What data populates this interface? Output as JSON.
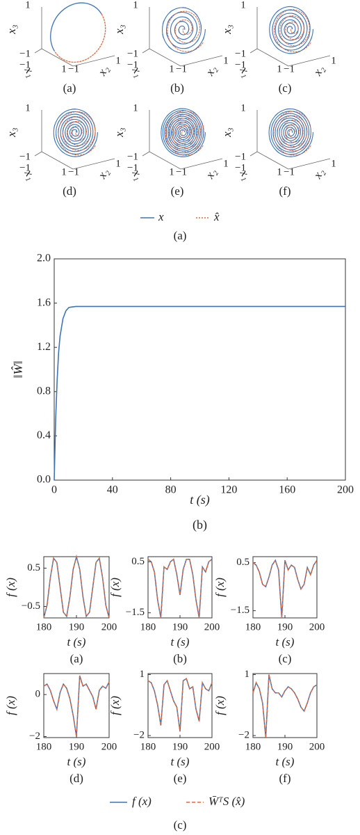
{
  "phase_portraits": {
    "panels": [
      "(a)",
      "(b)",
      "(c)",
      "(d)",
      "(e)",
      "(f)"
    ],
    "tick_pos": "1",
    "tick_neg": "−1",
    "axes": [
      "x₁",
      "x₂",
      "x₃"
    ],
    "series": [
      {
        "name": "x",
        "color": "#3c74b6"
      },
      {
        "name": "x̂",
        "color": "#e2683c"
      }
    ],
    "caption": "(a)"
  },
  "legend_c": {
    "series": [
      {
        "name": "f (x)",
        "color": "#3c74b6"
      },
      {
        "name": "W̄ᵀS (x̂)",
        "color": "#e2683c"
      }
    ],
    "caption": "(c)"
  },
  "chart_data": [
    {
      "type": "line",
      "ylabel": "‖Ŵ‖",
      "xlabel": "t (s)",
      "caption": "(b)",
      "x": [
        0,
        1,
        2,
        3,
        4,
        6,
        8,
        10,
        12,
        15,
        20,
        40,
        80,
        120,
        160,
        200
      ],
      "series": [
        {
          "color": "#3c74b6",
          "values": [
            0,
            0.55,
            0.9,
            1.15,
            1.3,
            1.46,
            1.53,
            1.56,
            1.565,
            1.57,
            1.57,
            1.57,
            1.57,
            1.57,
            1.57,
            1.57
          ]
        }
      ],
      "xlim": [
        0,
        200
      ],
      "ylim": [
        0,
        2
      ],
      "xticks": [
        0,
        40,
        80,
        120,
        160,
        200
      ],
      "yticks": [
        {
          "value": 0,
          "label": "0.0"
        },
        {
          "value": 0.4,
          "label": "0.4"
        },
        {
          "value": 0.8,
          "label": "0.8"
        },
        {
          "value": 1.2,
          "label": "1.2"
        },
        {
          "value": 1.6,
          "label": "1.6"
        },
        {
          "value": 2,
          "label": "2.0"
        }
      ]
    },
    {
      "type": "line",
      "label": "(a)",
      "xlabel": "t (s)",
      "ylabel": "f (x)",
      "x": [
        180,
        181,
        182,
        183,
        184,
        185,
        186,
        187,
        188,
        189,
        190,
        191,
        192,
        193,
        194,
        195,
        196,
        197,
        198,
        199,
        200
      ],
      "series": [
        {
          "color": "#3c74b6",
          "values": [
            -0.8,
            -0.47,
            0.25,
            0.76,
            0.65,
            0,
            -0.65,
            -0.76,
            -0.25,
            0.47,
            0.8,
            0.47,
            -0.25,
            -0.76,
            -0.65,
            0,
            0.65,
            0.76,
            0.25,
            -0.47,
            -0.8
          ]
        },
        {
          "color": "#e2683c",
          "dash": true,
          "values": [
            -0.8,
            -0.47,
            0.25,
            0.76,
            0.65,
            0,
            -0.65,
            -0.76,
            -0.25,
            0.47,
            0.8,
            0.47,
            -0.25,
            -0.76,
            -0.65,
            0,
            0.65,
            0.76,
            0.25,
            -0.47,
            -0.8
          ]
        }
      ],
      "xlim": [
        180,
        200
      ],
      "ylim": [
        -0.8,
        0.8
      ],
      "xticks": [
        180,
        190,
        200
      ],
      "yticks": [
        0.5,
        {
          "value": -0.5,
          "label": "−0.5"
        }
      ]
    },
    {
      "type": "line",
      "label": "(b)",
      "xlabel": "t (s)",
      "ylabel": "f (x)",
      "x": [
        180,
        181,
        182,
        183,
        184,
        185,
        186,
        187,
        188,
        189,
        190,
        191,
        192,
        193,
        194,
        195,
        196,
        197,
        198,
        199,
        200
      ],
      "series": [
        {
          "color": "#3c74b6",
          "values": [
            0.6,
            0.5,
            0.1,
            -1.0,
            -1.7,
            0.3,
            0.2,
            0.5,
            0.6,
            0,
            -0.8,
            0.2,
            0.6,
            0.6,
            0,
            -1.0,
            -1.7,
            0.3,
            0.1,
            0.5,
            0.6
          ]
        },
        {
          "color": "#e2683c",
          "dash": true,
          "values": [
            0.6,
            0.5,
            0.1,
            -1.0,
            -1.7,
            0.3,
            0.2,
            0.5,
            0.6,
            0,
            -0.8,
            0.2,
            0.6,
            0.6,
            0,
            -1.0,
            -1.7,
            0.3,
            0.1,
            0.5,
            0.6
          ]
        }
      ],
      "xlim": [
        180,
        200
      ],
      "ylim": [
        -1.7,
        0.7
      ],
      "xticks": [
        180,
        190,
        200
      ],
      "yticks": [
        0.5,
        {
          "value": -1.5,
          "label": "−1.5"
        }
      ]
    },
    {
      "type": "line",
      "label": "(c)",
      "xlabel": "t (s)",
      "ylabel": "f (x)",
      "x": [
        180,
        181,
        182,
        183,
        184,
        185,
        186,
        187,
        188,
        189,
        190,
        191,
        192,
        193,
        194,
        195,
        196,
        197,
        198,
        199,
        200
      ],
      "series": [
        {
          "color": "#3c74b6",
          "values": [
            0.5,
            0.4,
            0.1,
            -0.4,
            -0.5,
            -0.1,
            0.4,
            0.6,
            0.2,
            -1.8,
            0.6,
            0.2,
            0.4,
            0.3,
            -0.2,
            -0.6,
            -0.4,
            0.3,
            0,
            0.4,
            0.6
          ]
        },
        {
          "color": "#e2683c",
          "dash": true,
          "values": [
            0.5,
            0.4,
            0.1,
            -0.4,
            -0.5,
            -0.1,
            0.4,
            0.6,
            0.2,
            -1.8,
            0.6,
            0.2,
            0.4,
            0.3,
            -0.2,
            -0.6,
            -0.4,
            0.3,
            0,
            0.4,
            0.6
          ]
        }
      ],
      "xlim": [
        180,
        200
      ],
      "ylim": [
        -1.8,
        0.75
      ],
      "xticks": [
        180,
        190,
        200
      ],
      "yticks": [
        0.5,
        {
          "value": -1.5,
          "label": "−1.5"
        }
      ]
    },
    {
      "type": "line",
      "label": "(d)",
      "xlabel": "t (s)",
      "ylabel": "f (x)",
      "x": [
        180,
        181,
        182,
        183,
        184,
        185,
        186,
        187,
        188,
        189,
        190,
        191,
        192,
        193,
        194,
        195,
        196,
        197,
        198,
        199,
        200
      ],
      "series": [
        {
          "color": "#3c74b6",
          "values": [
            0.4,
            0.5,
            0.2,
            -0.3,
            -0.7,
            0.1,
            0.5,
            0.3,
            -0.2,
            -1.0,
            -2.0,
            0.9,
            0.4,
            0.5,
            0.2,
            -0.1,
            -0.7,
            0.2,
            0.4,
            0.3,
            0.6
          ]
        },
        {
          "color": "#e2683c",
          "dash": true,
          "values": [
            0.4,
            0.5,
            0.2,
            -0.3,
            -0.7,
            0.1,
            0.5,
            0.3,
            -0.2,
            -1.0,
            -2.0,
            0.9,
            0.4,
            0.5,
            0.2,
            -0.1,
            -0.7,
            0.2,
            0.4,
            0.3,
            0.6
          ]
        }
      ],
      "xlim": [
        180,
        200
      ],
      "ylim": [
        -2.05,
        1
      ],
      "xticks": [
        180,
        190,
        200
      ],
      "yticks": [
        0,
        {
          "value": -2,
          "label": "−2"
        }
      ]
    },
    {
      "type": "line",
      "label": "(e)",
      "xlabel": "t (s)",
      "ylabel": "f (x)",
      "x": [
        180,
        181,
        182,
        183,
        184,
        185,
        186,
        187,
        188,
        189,
        190,
        191,
        192,
        193,
        194,
        195,
        196,
        197,
        198,
        199,
        200
      ],
      "series": [
        {
          "color": "#3c74b6",
          "values": [
            0.7,
            0.6,
            0.2,
            -0.5,
            -1.5,
            0.5,
            0.7,
            0.2,
            -0.3,
            -0.6,
            -1.8,
            0.7,
            0.8,
            0.3,
            0.4,
            -0.7,
            -1.3,
            0.6,
            0.3,
            0.2,
            0.6
          ]
        },
        {
          "color": "#e2683c",
          "dash": true,
          "values": [
            0.7,
            0.6,
            0.2,
            -0.5,
            -1.5,
            0.5,
            0.7,
            0.2,
            -0.3,
            -0.6,
            -1.8,
            0.7,
            0.8,
            0.3,
            0.4,
            -0.7,
            -1.3,
            0.6,
            0.3,
            0.2,
            0.6
          ]
        }
      ],
      "xlim": [
        180,
        200
      ],
      "ylim": [
        -2.1,
        1.05
      ],
      "xticks": [
        180,
        190,
        200
      ],
      "yticks": [
        1,
        {
          "value": -2,
          "label": "−2"
        }
      ]
    },
    {
      "type": "line",
      "label": "(f)",
      "xlabel": "t (s)",
      "ylabel": "f (x)",
      "x": [
        180,
        181,
        182,
        183,
        184,
        185,
        186,
        187,
        188,
        189,
        190,
        191,
        192,
        193,
        194,
        195,
        196,
        197,
        198,
        199,
        200
      ],
      "series": [
        {
          "color": "#3c74b6",
          "values": [
            0.1,
            0.6,
            0.3,
            -0.4,
            -2.1,
            1.0,
            0.3,
            0.1,
            0.1,
            -0.1,
            0.2,
            0.4,
            0.3,
            0.1,
            -0.2,
            -0.6,
            -0.8,
            -0.4,
            0.1,
            0.4,
            0.5
          ]
        },
        {
          "color": "#e2683c",
          "dash": true,
          "values": [
            0.1,
            0.6,
            0.3,
            -0.4,
            -2.1,
            1.0,
            0.3,
            0.1,
            0.1,
            -0.1,
            0.2,
            0.4,
            0.3,
            0.1,
            -0.2,
            -0.6,
            -0.8,
            -0.4,
            0.1,
            0.4,
            0.5
          ]
        }
      ],
      "xlim": [
        180,
        200
      ],
      "ylim": [
        -2.1,
        1.05
      ],
      "xticks": [
        180,
        190,
        200
      ],
      "yticks": [
        1,
        {
          "value": -2,
          "label": "−2"
        }
      ]
    }
  ]
}
